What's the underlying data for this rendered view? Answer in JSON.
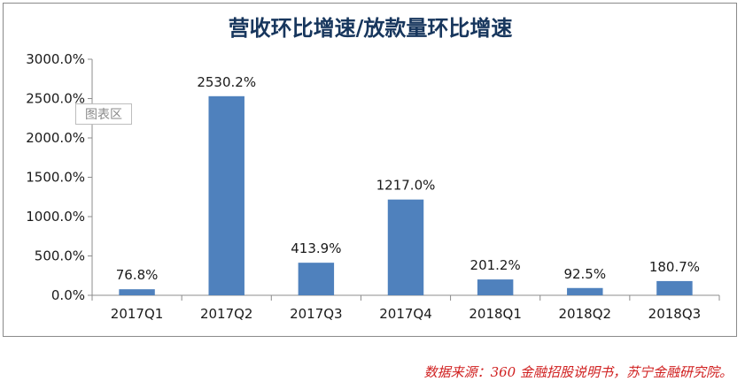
{
  "chart_data": {
    "type": "bar",
    "title": "营收环比增速/放款量环比增速",
    "categories": [
      "2017Q1",
      "2017Q2",
      "2017Q3",
      "2017Q4",
      "2018Q1",
      "2018Q2",
      "2018Q3"
    ],
    "values": [
      76.8,
      2530.2,
      413.9,
      1217.0,
      201.2,
      92.5,
      180.7
    ],
    "data_labels": [
      "76.8%",
      "2530.2%",
      "413.9%",
      "1217.0%",
      "201.2%",
      "92.5%",
      "180.7%"
    ],
    "ylim": [
      0,
      3000
    ],
    "yticks": [
      0,
      500,
      1000,
      1500,
      2000,
      2500,
      3000
    ],
    "ytick_labels": [
      "0.0%",
      "500.0%",
      "1000.0%",
      "1500.0%",
      "2000.0%",
      "2500.0%",
      "3000.0%"
    ],
    "grid": false,
    "legend": "none",
    "bar_color": "#4f81bd"
  },
  "tooltip": {
    "label": "图表区"
  },
  "source_note": "数据来源：360 金融招股说明书，苏宁金融研究院。"
}
